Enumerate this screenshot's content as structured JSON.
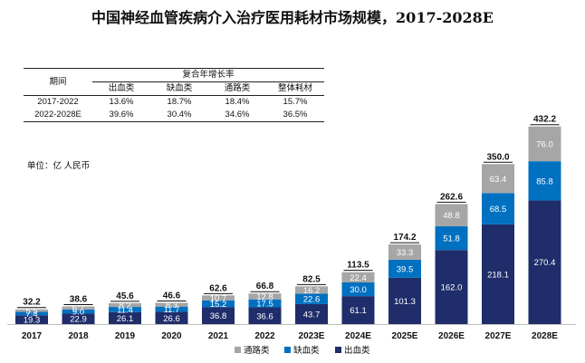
{
  "colors": {
    "tongluo": "#a6a6a6",
    "quexue": "#0070c0",
    "chuxue": "#1f2d6a"
  },
  "table": {
    "header_period": "期间",
    "header_group": "复合年增长率",
    "columns": [
      "出血类",
      "缺血类",
      "通路类",
      "整体耗材"
    ],
    "rows": [
      {
        "period": "2017-2022",
        "values": [
          "13.6%",
          "18.7%",
          "18.4%",
          "15.7%"
        ]
      },
      {
        "period": "2022-2028E",
        "values": [
          "39.6%",
          "30.4%",
          "34.6%",
          "36.5%"
        ]
      }
    ]
  },
  "unit": "单位：亿 人民币",
  "chart_data": {
    "type": "bar",
    "stacked": true,
    "title": "中国神经血管疾病介入治疗医用耗材市场规模，2017-2028E",
    "categories": [
      "2017",
      "2018",
      "2019",
      "2020",
      "2021",
      "2022",
      "2023E",
      "2024E",
      "2025E",
      "2026E",
      "2027E",
      "2028E"
    ],
    "series": [
      {
        "name": "出血类",
        "values": [
          19.3,
          22.9,
          26.1,
          26.6,
          36.8,
          36.6,
          43.7,
          61.1,
          101.3,
          162.0,
          218.1,
          270.4
        ]
      },
      {
        "name": "缺血类",
        "values": [
          7.4,
          9.0,
          11.4,
          11.7,
          15.2,
          17.5,
          22.6,
          30.0,
          39.5,
          51.8,
          68.5,
          85.8
        ]
      },
      {
        "name": "通路类",
        "values": [
          5.5,
          6.7,
          8.2,
          8.3,
          10.7,
          12.8,
          16.2,
          22.4,
          33.3,
          48.8,
          63.4,
          76.0
        ]
      }
    ],
    "totals": [
      "32.2",
      "38.6",
      "45.6",
      "46.6",
      "62.6",
      "66.8",
      "82.5",
      "113.5",
      "174.2",
      "262.6",
      "350.0",
      "432.2"
    ],
    "legend": [
      "通路类",
      "缺血类",
      "出血类"
    ],
    "legend_position": "bottom-center",
    "grid": false
  }
}
